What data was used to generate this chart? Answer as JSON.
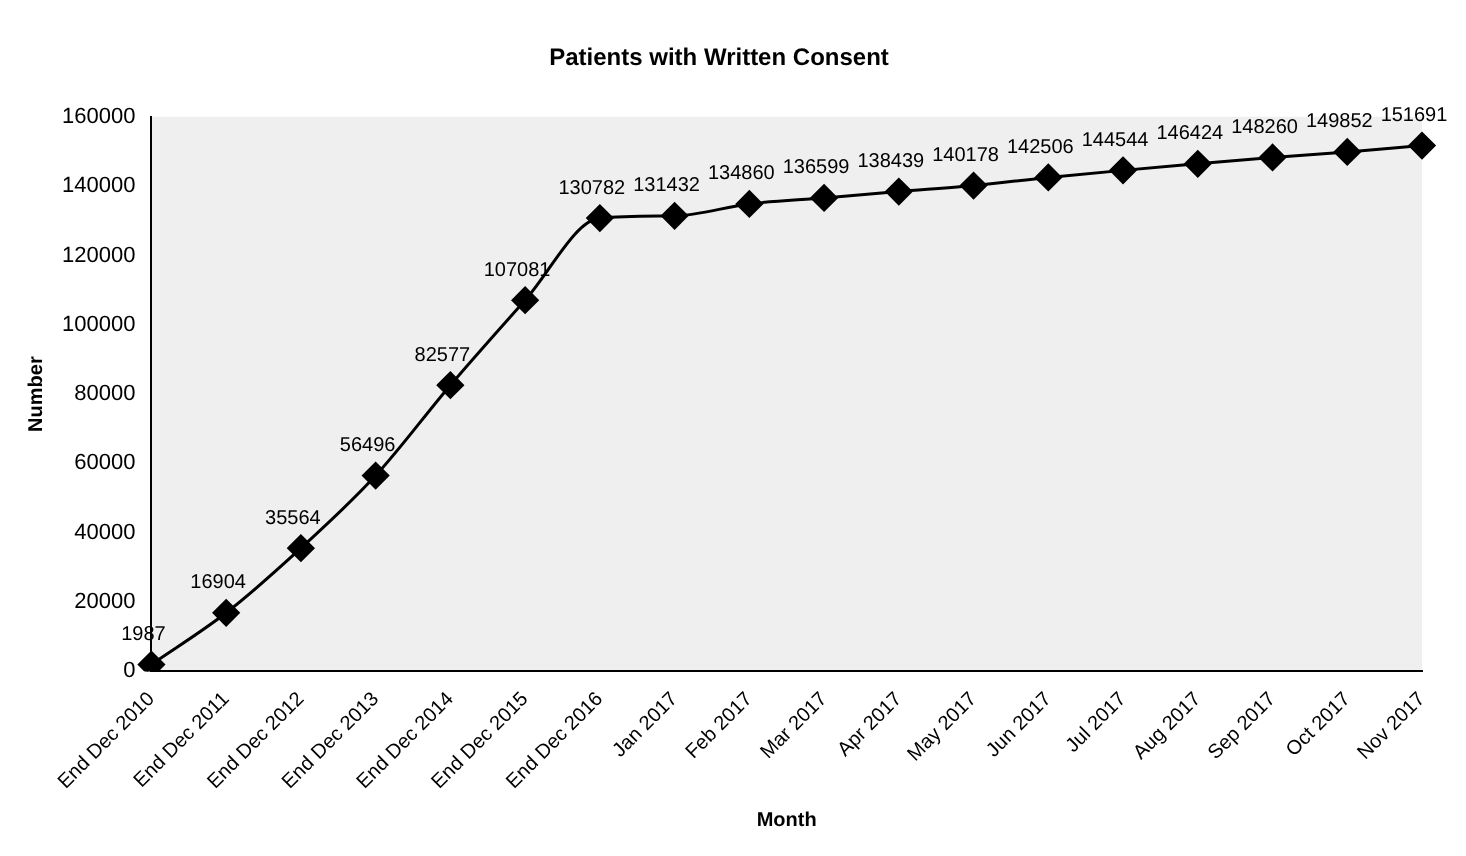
{
  "chart_data": {
    "type": "line",
    "title": "Patients with Written Consent",
    "xlabel": "Month",
    "ylabel": "Number",
    "categories": [
      "End Dec 2010",
      "End Dec 2011",
      "End Dec 2012",
      "End Dec 2013",
      "End Dec 2014",
      "End Dec 2015",
      "End Dec 2016",
      "Jan 2017",
      "Feb 2017",
      "Mar 2017",
      "Apr 2017",
      "May 2017",
      "Jun 2017",
      "Jul 2017",
      "Aug 2017",
      "Sep 2017",
      "Oct 2017",
      "Nov 2017"
    ],
    "series": [
      {
        "color": "#000000",
        "values": [
          1987,
          16904,
          35564,
          56496,
          82577,
          107081,
          130782,
          131432,
          134860,
          136599,
          138439,
          140178,
          142506,
          144544,
          146424,
          148260,
          149852,
          151691
        ]
      }
    ],
    "ylim": [
      0,
      160000
    ],
    "yticks": [
      0,
      20000,
      40000,
      60000,
      80000,
      100000,
      120000,
      140000,
      160000
    ],
    "grid": false,
    "legend": false,
    "marker": "diamond",
    "line_style": "solid",
    "data_labels": true
  }
}
